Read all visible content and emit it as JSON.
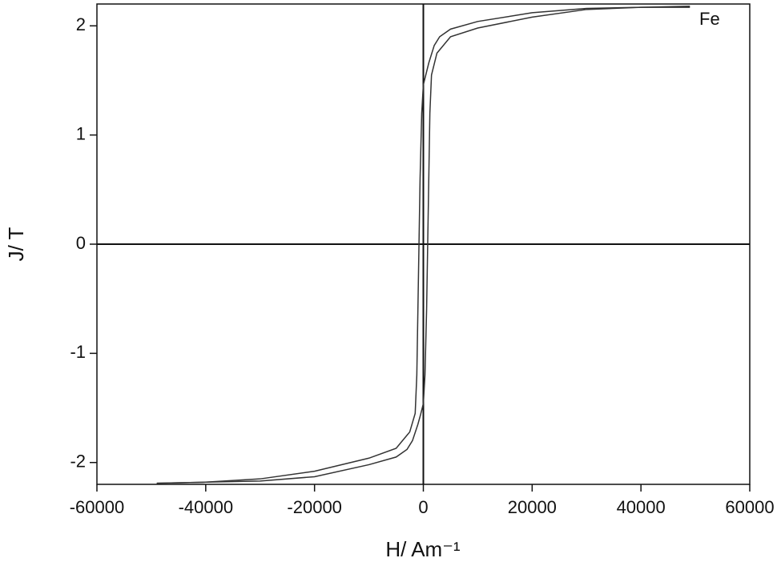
{
  "chart_data": {
    "type": "line",
    "annotation": "Fe",
    "x_label": "H/ Am⁻¹",
    "y_label": "J/ T",
    "xlim": [
      -60000,
      60000
    ],
    "ylim": [
      -2.2,
      2.2
    ],
    "xticks": [
      -60000,
      -40000,
      -20000,
      0,
      20000,
      40000,
      60000
    ],
    "yticks": [
      -2,
      -1,
      0,
      1,
      2
    ],
    "zero_lines": true,
    "series": [
      {
        "color": "#333333",
        "x": [
          49000,
          40000,
          30000,
          20000,
          10000,
          5000,
          3000,
          2000,
          1000,
          500,
          0,
          -300,
          -600,
          -800,
          -1000,
          -1200,
          -1500,
          -2500,
          -5000,
          -10000,
          -20000,
          -30000,
          -40000,
          -49000
        ],
        "values": [
          2.17,
          2.17,
          2.16,
          2.12,
          2.04,
          1.97,
          1.9,
          1.82,
          1.66,
          1.56,
          1.46,
          1.2,
          0.6,
          0,
          -0.6,
          -1.2,
          -1.55,
          -1.72,
          -1.87,
          -1.96,
          -2.08,
          -2.15,
          -2.18,
          -2.19
        ]
      },
      {
        "color": "#333333",
        "x": [
          -49000,
          -40000,
          -30000,
          -20000,
          -10000,
          -5000,
          -3000,
          -2000,
          -1000,
          -500,
          0,
          300,
          600,
          800,
          1000,
          1200,
          1500,
          2500,
          5000,
          10000,
          20000,
          30000,
          40000,
          49000
        ],
        "values": [
          -2.19,
          -2.18,
          -2.17,
          -2.13,
          -2.02,
          -1.95,
          -1.88,
          -1.8,
          -1.65,
          -1.56,
          -1.46,
          -1.2,
          -0.6,
          0,
          0.6,
          1.2,
          1.55,
          1.75,
          1.9,
          1.98,
          2.08,
          2.15,
          2.17,
          2.18
        ]
      }
    ]
  }
}
